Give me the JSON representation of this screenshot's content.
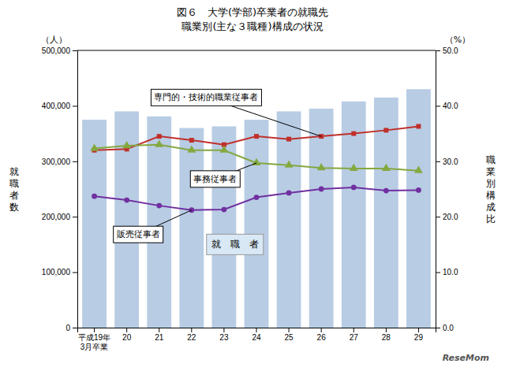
{
  "chart_data": {
    "type": "bar",
    "title": "図６　大学(学部)卒業者の就職先",
    "subtitle": "職業別(主な３職種)構成の状況",
    "categories": [
      "平成19年\n3月卒業",
      "20",
      "21",
      "22",
      "23",
      "24",
      "25",
      "26",
      "27",
      "28",
      "29"
    ],
    "series": [
      {
        "name": "就　職　者",
        "type": "bar",
        "color": "#b8cce4",
        "values": [
          375000,
          390000,
          381000,
          360000,
          363000,
          375000,
          390000,
          395000,
          408000,
          415000,
          430000
        ]
      },
      {
        "name": "専門的・技術的職業従事者",
        "type": "line",
        "color": "#c0302b",
        "marker": "square",
        "values": [
          320000,
          322000,
          345000,
          338000,
          330000,
          345000,
          340000,
          345000,
          350000,
          356000,
          363000
        ]
      },
      {
        "name": "事務従事者",
        "type": "line",
        "color": "#84a840",
        "marker": "triangle",
        "values": [
          323000,
          328000,
          330000,
          320000,
          320000,
          297000,
          293000,
          288000,
          287000,
          287000,
          283000
        ]
      },
      {
        "name": "販売従事者",
        "type": "line",
        "color": "#7030a0",
        "marker": "circle",
        "values": [
          237000,
          230000,
          220000,
          212000,
          213000,
          235000,
          243000,
          250000,
          253000,
          247000,
          248000
        ]
      }
    ],
    "y_label": "就\n職\n者\n数",
    "y2_label": "職\n業\n別\n構\n成\n比",
    "ylim": [
      0,
      500000
    ],
    "yticks": [
      0,
      {
        "value": 100000,
        "label": "100,000"
      },
      {
        "value": 200000,
        "label": "200,000"
      },
      {
        "value": 300000,
        "label": "300,000"
      },
      {
        "value": 400000,
        "label": "400,000"
      },
      {
        "value": 500000,
        "label": "500,000"
      }
    ],
    "y2lim": [
      0,
      50
    ],
    "y2ticks": [
      {
        "value": 0,
        "label": "0.0"
      },
      {
        "value": 10,
        "label": "10.0"
      },
      {
        "value": 20,
        "label": "20.0"
      },
      {
        "value": 30,
        "label": "30.0"
      },
      {
        "value": 40,
        "label": "40.0"
      },
      {
        "value": 50,
        "label": "50.0"
      }
    ],
    "annotations": [
      {
        "text": "（人）",
        "axis": "y"
      },
      {
        "text": "（%）",
        "axis": "y2"
      },
      {
        "text": "ReseMom"
      }
    ],
    "grid": false
  }
}
